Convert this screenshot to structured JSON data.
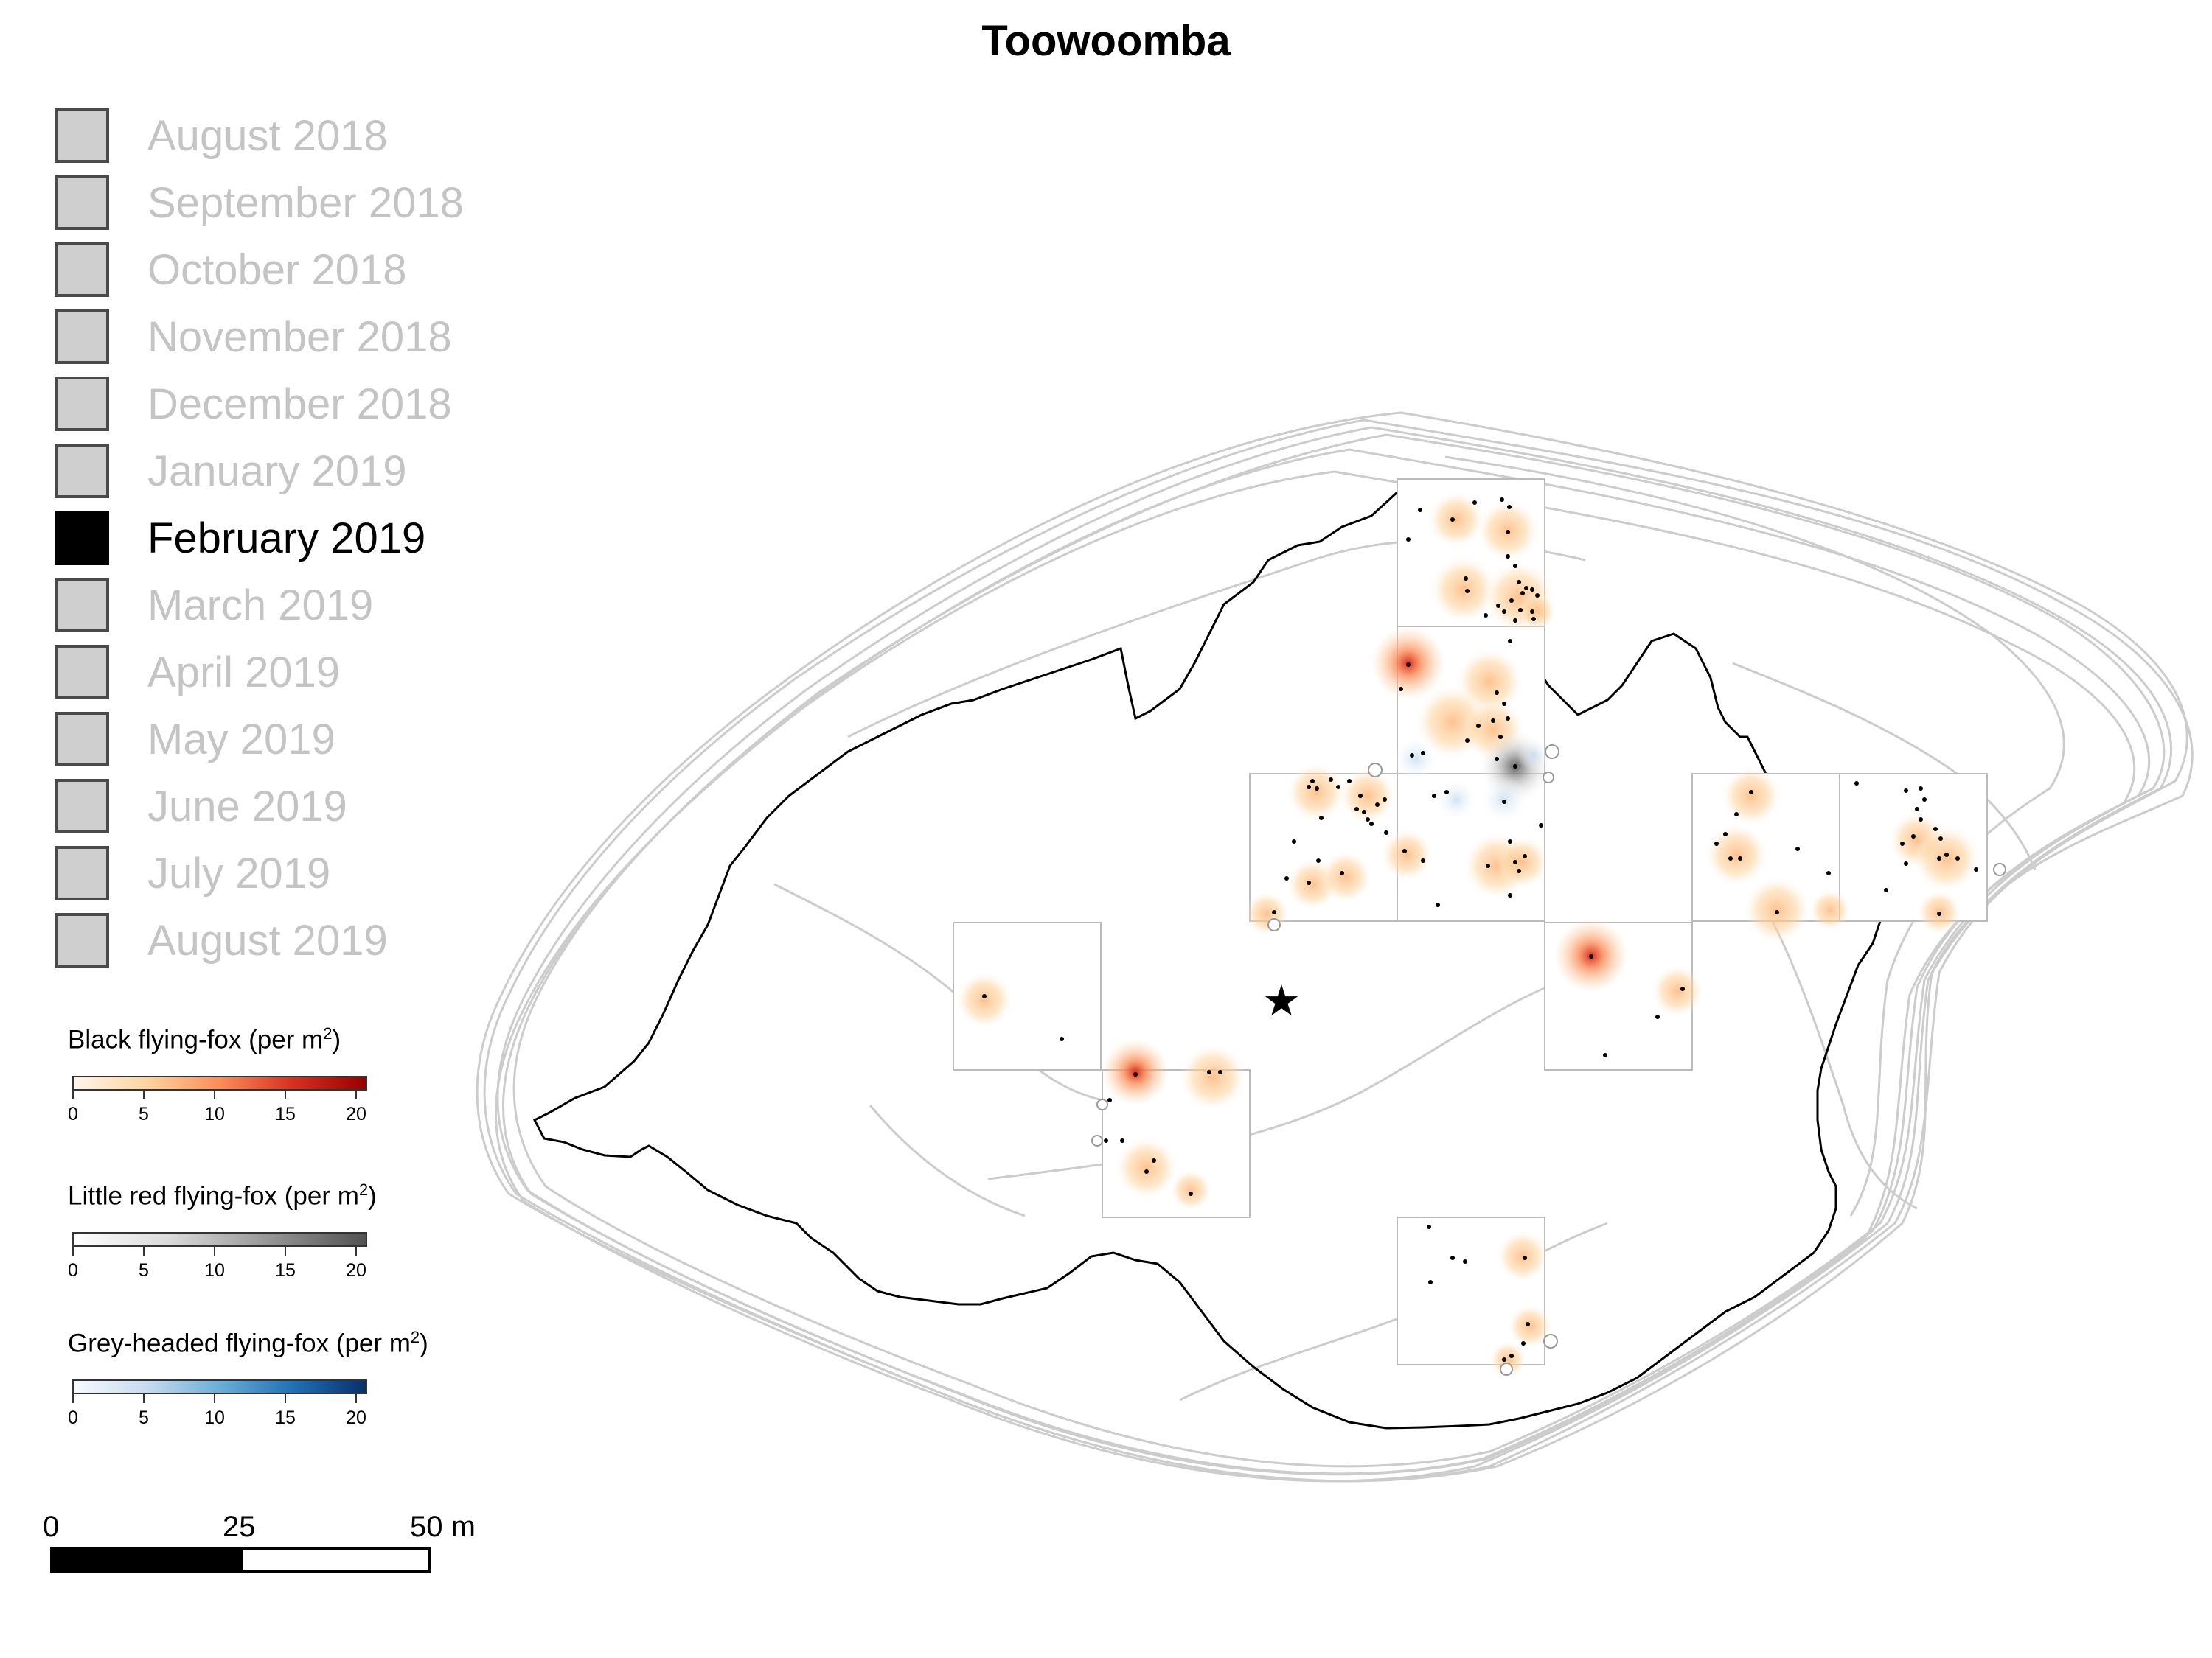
{
  "title": "Toowoomba",
  "months": [
    {
      "label": "August 2018",
      "active": false
    },
    {
      "label": "September 2018",
      "active": false
    },
    {
      "label": "October 2018",
      "active": false
    },
    {
      "label": "November 2018",
      "active": false
    },
    {
      "label": "December 2018",
      "active": false
    },
    {
      "label": "January 2019",
      "active": false
    },
    {
      "label": "February 2019",
      "active": true
    },
    {
      "label": "March 2019",
      "active": false
    },
    {
      "label": "April 2019",
      "active": false
    },
    {
      "label": "May 2019",
      "active": false
    },
    {
      "label": "June 2019",
      "active": false
    },
    {
      "label": "July 2019",
      "active": false
    },
    {
      "label": "August 2019",
      "active": false
    }
  ],
  "legends": [
    {
      "title": "Black flying-fox (per m",
      "unit_sup": "2",
      "title_end": ")",
      "colors": [
        "#fff5eb",
        "#fdd49e",
        "#fc8d59",
        "#d7301f",
        "#990000"
      ],
      "ticks": [
        "0",
        "5",
        "10",
        "15",
        "20"
      ]
    },
    {
      "title": "Little red flying-fox (per m",
      "unit_sup": "2",
      "title_end": ")",
      "colors": [
        "#ffffff",
        "#d9d9d9",
        "#969696",
        "#525252"
      ],
      "ticks": [
        "0",
        "5",
        "10",
        "15",
        "20"
      ]
    },
    {
      "title": "Grey-headed flying-fox (per m",
      "unit_sup": "2",
      "title_end": ")",
      "colors": [
        "#f7fbff",
        "#c6dbef",
        "#6baed6",
        "#2171b5",
        "#08306b"
      ],
      "ticks": [
        "0",
        "5",
        "10",
        "15",
        "20"
      ]
    }
  ],
  "scalebar": {
    "labels": [
      "0",
      "25",
      "50 m"
    ]
  },
  "map": {
    "roost_marker_icon": "star-icon",
    "colors": {
      "outline_grey": "#cccccc",
      "outline_current": "#000000",
      "black_ff": "#fc8d59",
      "black_ff_strong": "#d7301f",
      "little_red": "#555555",
      "grey_headed": "#9ecae1"
    }
  }
}
